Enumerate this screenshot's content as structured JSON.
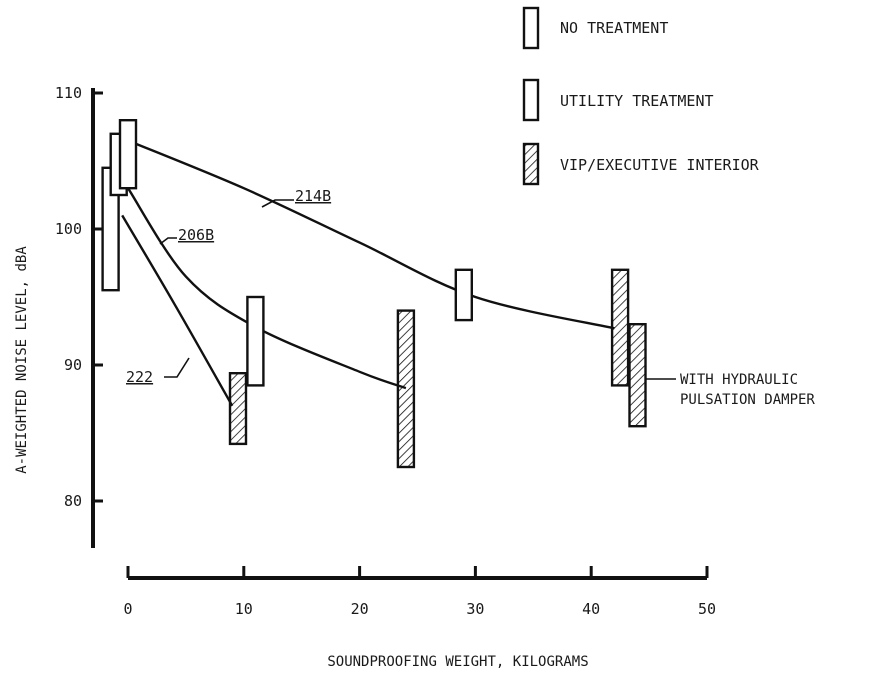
{
  "chart_data": {
    "type": "scatter",
    "title": "",
    "xlabel": "SOUNDPROOFING WEIGHT, KILOGRAMS",
    "ylabel": "A-WEIGHTED NOISE LEVEL, dBA",
    "xlim": [
      -2,
      50
    ],
    "ylim": [
      76,
      110
    ],
    "x_ticks": [
      0,
      10,
      20,
      30,
      40,
      50
    ],
    "y_ticks": [
      80,
      90,
      100,
      110
    ],
    "legend": {
      "placement": "top-right",
      "items": [
        {
          "key": "none",
          "label": "NO TREATMENT"
        },
        {
          "key": "utility",
          "label": "UTILITY TREATMENT"
        },
        {
          "key": "vip",
          "label": "VIP/EXECUTIVE INTERIOR"
        }
      ]
    },
    "series": [
      {
        "name": "214B",
        "curve": [
          [
            0,
            106.5
          ],
          [
            10,
            103
          ],
          [
            20,
            99
          ],
          [
            30,
            95
          ],
          [
            42,
            92.7
          ]
        ],
        "bars": [
          {
            "x": 0,
            "low": 103,
            "high": 108,
            "treatment": "none"
          },
          {
            "x": 29,
            "low": 93.3,
            "high": 97,
            "treatment": "utility"
          },
          {
            "x": 42.5,
            "low": 88.5,
            "high": 97,
            "treatment": "vip"
          }
        ]
      },
      {
        "name": "206B",
        "curve": [
          [
            0,
            103
          ],
          [
            5,
            96.5
          ],
          [
            11,
            92.8
          ],
          [
            20,
            89.5
          ],
          [
            24,
            88.3
          ]
        ],
        "bars": [
          {
            "x": -0.8,
            "low": 102.5,
            "high": 107,
            "treatment": "utility"
          },
          {
            "x": 11,
            "low": 88.5,
            "high": 95,
            "treatment": "utility"
          },
          {
            "x": 24,
            "low": 82.5,
            "high": 94,
            "treatment": "vip"
          }
        ]
      },
      {
        "name": "222",
        "curve": [
          [
            -0.5,
            101
          ],
          [
            4,
            94.5
          ],
          [
            9,
            87
          ]
        ],
        "bars": [
          {
            "x": -1.5,
            "low": 95.5,
            "high": 104.5,
            "treatment": "none"
          },
          {
            "x": 9.5,
            "low": 84.2,
            "high": 89.4,
            "treatment": "vip"
          }
        ]
      }
    ],
    "annotations": [
      {
        "text_lines": [
          "WITH HYDRAULIC",
          "PULSATION DAMPER"
        ],
        "bar": {
          "x": 44,
          "low": 85.5,
          "high": 93,
          "treatment": "vip"
        }
      }
    ]
  }
}
